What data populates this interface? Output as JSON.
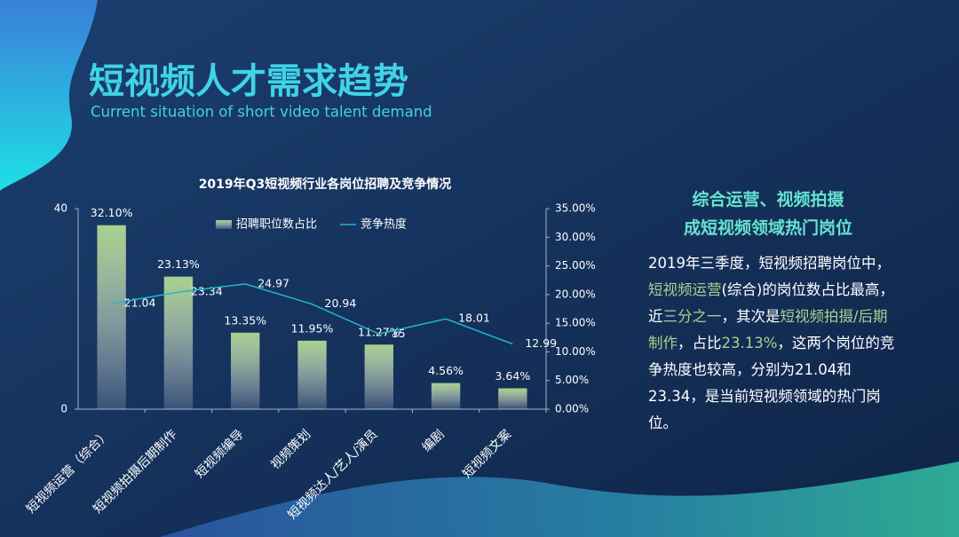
{
  "header": {
    "title": "短视频人才需求趋势",
    "subtitle": "Current situation of short video talent demand"
  },
  "chart_data": {
    "type": "combo",
    "title": "2019年Q3短视频行业各岗位招聘及竞争情况",
    "categories": [
      "短视频运营（综合）",
      "短视频拍摄后期制作",
      "短视频编导",
      "视频策划",
      "短视频达人/艺人/演员",
      "编剧",
      "短视频文案"
    ],
    "series": [
      {
        "name": "招聘职位数占比",
        "type": "bar",
        "axis": "y2",
        "color": "#a9d18e",
        "values": [
          32.1,
          23.13,
          13.35,
          11.95,
          11.27,
          4.56,
          3.64
        ],
        "value_labels": [
          "32.10%",
          "23.13%",
          "13.35%",
          "11.95%",
          "11.27%",
          "4.56%",
          "3.64%"
        ]
      },
      {
        "name": "竞争热度",
        "type": "line",
        "color": "#22b8cc",
        "values": [
          21.04,
          23.34,
          24.97,
          20.94,
          15,
          18.01,
          12.99
        ]
      }
    ],
    "ylim": [
      0,
      40
    ],
    "yticks": [
      0,
      40
    ],
    "y2lim": [
      0,
      35
    ],
    "y2ticks": [
      {
        "value": 0,
        "label": "0.00%"
      },
      {
        "value": 5,
        "label": "5.00%"
      },
      {
        "value": 10,
        "label": "10.00%"
      },
      {
        "value": 15,
        "label": "15.00%"
      },
      {
        "value": 20,
        "label": "20.00%"
      },
      {
        "value": 25,
        "label": "25.00%"
      },
      {
        "value": 30,
        "label": "30.00%"
      },
      {
        "value": 35,
        "label": "35.00%"
      }
    ],
    "grid": false
  },
  "sidebar": {
    "heading": [
      "综合运营、视频拍摄",
      "成短视频领域热门岗位"
    ],
    "body": [
      {
        "text": "2019年三季度，短视频招聘岗位中，",
        "color": "#ffffff"
      },
      {
        "text": "短视频运营",
        "color": "#a9d18e"
      },
      {
        "text": "(综合)的岗位数占比最高，近",
        "color": "#ffffff"
      },
      {
        "text": "三分之一",
        "color": "#a9d18e"
      },
      {
        "text": "，其次是",
        "color": "#ffffff"
      },
      {
        "text": "短视频拍摄/后期制作",
        "color": "#a9d18e"
      },
      {
        "text": "，占比",
        "color": "#ffffff"
      },
      {
        "text": "23.13%",
        "color": "#a9d18e"
      },
      {
        "text": "，这两个岗位的竞争热度也较高，分别为21.04和23.34，是当前短视频领域的热门岗位。",
        "color": "#ffffff"
      }
    ]
  }
}
